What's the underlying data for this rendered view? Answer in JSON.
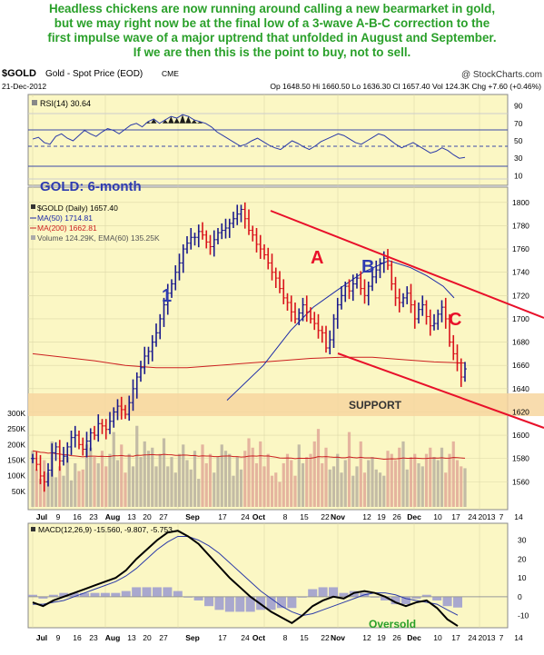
{
  "headline": [
    "Headless chickens are now running around calling a new bearmarket in gold,",
    "but we may right now be at the final low of a 3-wave  A-B-C correction to the",
    "first impulse wave of a major uptrend that unfolded in August and September.",
    "If we are then this is the point to buy, not to sell."
  ],
  "header": {
    "symbol": "$GOLD",
    "name": "Gold - Spot Price (EOD)",
    "exchange": "CME",
    "credit": "@ StockCharts.com",
    "date": "21-Dec-2012",
    "ohlc": "Op 1648.50  Hi 1660.50  Lo 1636.30  Cl 1657.40  Vol 124.3K  Chg +7.60 (+0.46%)"
  },
  "rsi": {
    "label": "RSI(14) 30.64",
    "ticks": [
      "90",
      "70",
      "50",
      "30",
      "10"
    ],
    "levels": [
      70,
      30
    ],
    "ylim": [
      0,
      100
    ],
    "series": [
      52,
      54,
      48,
      46,
      55,
      58,
      53,
      50,
      56,
      62,
      58,
      55,
      60,
      64,
      62,
      58,
      63,
      68,
      70,
      66,
      72,
      75,
      70,
      74,
      78,
      76,
      80,
      78,
      74,
      72,
      70,
      66,
      60,
      56,
      52,
      48,
      44,
      46,
      50,
      53,
      49,
      45,
      42,
      40,
      45,
      50,
      47,
      43,
      40,
      44,
      49,
      52,
      55,
      58,
      56,
      52,
      48,
      46,
      50,
      54,
      58,
      56,
      51,
      46,
      42,
      45,
      48,
      44,
      40,
      36,
      38,
      42,
      39,
      34,
      30,
      31
    ]
  },
  "price": {
    "title": "GOLD: 6-month",
    "legend": [
      "$GOLD (Daily) 1657.40",
      "MA(50) 1714.81",
      "MA(200) 1662.81",
      "Volume 124.29K, EMA(60) 135.25K"
    ],
    "ticks": [
      "1800",
      "1780",
      "1760",
      "1740",
      "1720",
      "1700",
      "1680",
      "1660",
      "1640",
      "1620",
      "1600",
      "1580",
      "1560"
    ],
    "vol_ticks": [
      "300K",
      "250K",
      "200K",
      "150K",
      "100K",
      "50K"
    ],
    "ylim": [
      1540,
      1810
    ],
    "support_label": "SUPPORT",
    "support_zone": [
      1622,
      1636
    ],
    "wave_labels": [
      "1",
      "A",
      "B",
      "C"
    ]
  },
  "macd": {
    "label": "MACD(12,26,9) -15.560, -9.807, -5.753",
    "ticks": [
      "30",
      "20",
      "10",
      "0",
      "-10"
    ],
    "ylim": [
      -16,
      38
    ],
    "oversold_label": "Oversold"
  },
  "x_labels": [
    "Jul",
    "9",
    "16",
    "23",
    "Aug",
    "13",
    "20",
    "27",
    "Sep",
    "17",
    "24",
    "Oct",
    "8",
    "15",
    "22",
    "Nov",
    "12",
    "19",
    "26",
    "Dec",
    "10",
    "17",
    "24",
    "2013",
    "7",
    "14"
  ],
  "colors": {
    "panel_bg": "#fbf7c4",
    "headline": "#2aa02a",
    "annotation": "#2e3bb0",
    "trendline": "#e8102a",
    "support": "#f7d6a0",
    "bar_up": "#1a1a8c",
    "bar_down": "#d9121b",
    "ma50": "#1c2aa8",
    "ma200": "#cc2020"
  },
  "chart_data": [
    {
      "type": "line",
      "title": "GOLD: 6-month",
      "series": [
        {
          "name": "$GOLD (Daily) 1657.40",
          "values": [
            1580,
            1575,
            1565,
            1560,
            1570,
            1585,
            1590,
            1578,
            1582,
            1590,
            1598,
            1600,
            1592,
            1588,
            1595,
            1602,
            1600,
            1610,
            1608,
            1605,
            1612,
            1620,
            1625,
            1622,
            1618,
            1628,
            1640,
            1650,
            1658,
            1668,
            1672,
            1680,
            1688,
            1700,
            1712,
            1722,
            1730,
            1740,
            1748,
            1760,
            1765,
            1770,
            1770,
            1775,
            1772,
            1766,
            1762,
            1768,
            1774,
            1776,
            1778,
            1782,
            1786,
            1790,
            1794,
            1786,
            1776,
            1772,
            1764,
            1760,
            1755,
            1748,
            1740,
            1735,
            1726,
            1718,
            1714,
            1706,
            1700,
            1705,
            1712,
            1706,
            1700,
            1696,
            1690,
            1688,
            1675,
            1682,
            1700,
            1712,
            1720,
            1728,
            1724,
            1730,
            1735,
            1726,
            1720,
            1728,
            1736,
            1742,
            1748,
            1752,
            1746,
            1730,
            1718,
            1714,
            1718,
            1722,
            1712,
            1700,
            1708,
            1712,
            1702,
            1694,
            1696,
            1704,
            1710,
            1700,
            1680,
            1670,
            1662,
            1650,
            1657
          ]
        },
        {
          "name": "MA(50) 1714.81",
          "values": [
            1630,
            1660,
            1690,
            1710,
            1725,
            1740,
            1750,
            1744,
            1737,
            1728,
            1718
          ]
        },
        {
          "name": "MA(200) 1662.81",
          "values": [
            1670,
            1667,
            1664,
            1660,
            1658,
            1658,
            1660,
            1662,
            1664,
            1666,
            1667,
            1667,
            1665,
            1663,
            1662
          ]
        }
      ]
    },
    {
      "type": "bar",
      "series": [
        {
          "name": "Volume 124.29K, EMA(60) 135.25K",
          "values": [
            180,
            120,
            90,
            150,
            110,
            210,
            95,
            130,
            100,
            160,
            85,
            140,
            115,
            120,
            200,
            190,
            160,
            140,
            180,
            130,
            170,
            240,
            150,
            200,
            110,
            170,
            130,
            260,
            160,
            210,
            180,
            190,
            130,
            170,
            220,
            130,
            160,
            110,
            170,
            200,
            150,
            120,
            180,
            90,
            200,
            140,
            170,
            110,
            160,
            200,
            180,
            170,
            100,
            160,
            120,
            180,
            220,
            190,
            140,
            210,
            130,
            170,
            100,
            110,
            80,
            140,
            170,
            150,
            100,
            200,
            140,
            160,
            170,
            210,
            250,
            140,
            190,
            120,
            130,
            170,
            110,
            150,
            240,
            100,
            130,
            210,
            110,
            150,
            160,
            120,
            110,
            100,
            180,
            170,
            150,
            190,
            210,
            120,
            160,
            170,
            140,
            130,
            170,
            190,
            160,
            150,
            190,
            110,
            170,
            210,
            150,
            130,
            124
          ]
        }
      ]
    },
    {
      "type": "line",
      "series": [
        {
          "name": "MACD(12,26,9) -15.560, -9.807, -5.753",
          "values": [
            -3,
            -5,
            -2,
            0,
            2,
            4,
            6,
            8,
            10,
            14,
            20,
            25,
            30,
            34,
            35,
            32,
            28,
            22,
            16,
            10,
            5,
            0,
            -4,
            -8,
            -11,
            -14,
            -10,
            -5,
            -2,
            0,
            -1,
            2,
            3,
            2,
            0,
            -3,
            -5,
            -3,
            -2,
            -6,
            -12,
            -15.56
          ]
        },
        {
          "name": "Signal",
          "values": [
            -4,
            -4,
            -3,
            -2,
            0,
            2,
            4,
            6,
            8,
            11,
            15,
            20,
            25,
            29,
            32,
            32,
            30,
            27,
            23,
            18,
            13,
            8,
            3,
            -1,
            -5,
            -8,
            -10,
            -9,
            -7,
            -5,
            -3,
            -1,
            1,
            2,
            2,
            1,
            -1,
            -2,
            -3,
            -4,
            -7,
            -9.807
          ]
        },
        {
          "name": "Histogram",
          "values": [
            1,
            -1,
            1,
            2,
            2,
            2,
            2,
            2,
            2,
            3,
            5,
            5,
            5,
            5,
            3,
            0,
            -2,
            -5,
            -7,
            -8,
            -8,
            -8,
            -7,
            -7,
            -6,
            -6,
            0,
            4,
            5,
            5,
            2,
            3,
            2,
            0,
            -2,
            -4,
            -4,
            -1,
            1,
            -2,
            -5,
            -5.753
          ]
        }
      ]
    }
  ]
}
